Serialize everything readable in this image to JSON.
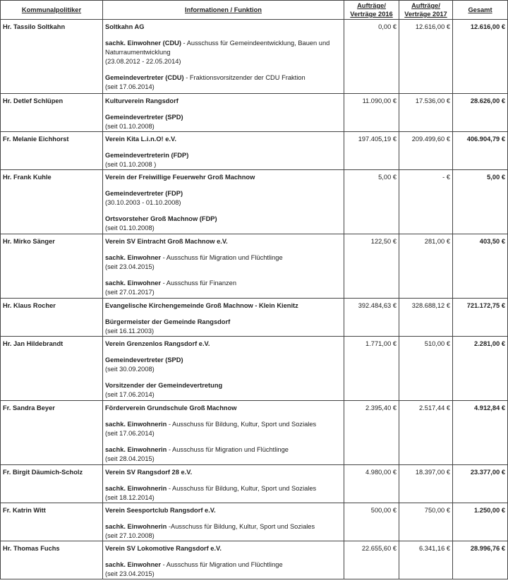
{
  "headers": {
    "politician": "Kommunalpolitiker",
    "info": "Informationen / Funktion",
    "y2016": "Aufträge/ Verträge 2016",
    "y2017": "Aufträge/ Verträge 2017",
    "total": "Gesamt"
  },
  "rows": [
    {
      "name": "Hr. Tassilo Soltkahn",
      "org": "Soltkahn AG",
      "blocks": [
        {
          "bold": "sachk. Einwohner (CDU)",
          "rest": " - Ausschuss für Gemeindeentwicklung, Bauen und Naturraumentwicklung",
          "date": "(23.08.2012 - 22.05.2014)"
        },
        {
          "bold": "Gemeindevertreter (CDU)",
          "rest": " - Fraktionsvorsitzender der CDU Fraktion",
          "date": "(seit 17.06.2014)"
        }
      ],
      "y2016": "0,00 €",
      "y2017": "12.616,00 €",
      "total": "12.616,00 €"
    },
    {
      "name": "Hr. Detlef Schlüpen",
      "org": "Kulturverein Rangsdorf",
      "blocks": [
        {
          "bold": "Gemeindevertreter (SPD)",
          "rest": "",
          "date": "(seit 01.10.2008)"
        }
      ],
      "y2016": "11.090,00 €",
      "y2017": "17.536,00 €",
      "total": "28.626,00 €"
    },
    {
      "name": "Fr. Melanie Eichhorst",
      "org": "Verein Kita L.i.n.O! e.V.",
      "blocks": [
        {
          "bold": "Gemeindevertreterin (FDP)",
          "rest": "",
          "date": "(seit 01.10.2008 )"
        }
      ],
      "y2016": "197.405,19 €",
      "y2017": "209.499,60 €",
      "total": "406.904,79 €"
    },
    {
      "name": "Hr. Frank Kuhle",
      "org": "Verein der Freiwillige Feuerwehr Groß Machnow",
      "blocks": [
        {
          "bold": "Gemeindevertreter (FDP)",
          "rest": "",
          "date": "(30.10.2003 - 01.10.2008)"
        },
        {
          "bold": "Ortsvorsteher Groß Machnow (FDP)",
          "rest": "",
          "date": "(seit 01.10.2008)"
        }
      ],
      "y2016": "5,00 €",
      "y2017": "-    €",
      "total": "5,00 €"
    },
    {
      "name": "Hr. Mirko Sänger",
      "org": "Verein SV Eintracht Groß Machnow e.V.",
      "blocks": [
        {
          "bold": "sachk. Einwohner",
          "rest": " - Ausschuss für Migration und Flüchtlinge",
          "date": "(seit 23.04.2015)"
        },
        {
          "bold": "sachk. Einwohner",
          "rest": " - Ausschuss für Finanzen",
          "date": "(seit 27.01.2017)"
        }
      ],
      "y2016": "122,50 €",
      "y2017": "281,00 €",
      "total": "403,50 €"
    },
    {
      "name": "Hr. Klaus Rocher",
      "org": "Evangelische Kirchengemeinde Groß Machnow - Klein Kienitz",
      "blocks": [
        {
          "bold": "Bürgermeister der Gemeinde Rangsdorf",
          "rest": "",
          "date": "(seit 16.11.2003)"
        }
      ],
      "y2016": "392.484,63 €",
      "y2017": "328.688,12 €",
      "total": "721.172,75 €"
    },
    {
      "name": "Hr. Jan Hildebrandt",
      "org": "Verein Grenzenlos Rangsdorf e.V.",
      "blocks": [
        {
          "bold": "Gemeindevertreter (SPD)",
          "rest": "",
          "date": "(seit 30.09.2008)"
        },
        {
          "bold": "Vorsitzender der Gemeindevertretung",
          "rest": "",
          "date": "(seit 17.06.2014)"
        }
      ],
      "y2016": "1.771,00 €",
      "y2017": "510,00 €",
      "total": "2.281,00 €"
    },
    {
      "name": "Fr. Sandra Beyer",
      "org": "Förderverein Grundschule Groß Machnow",
      "blocks": [
        {
          "bold": "sachk. Einwohnerin",
          "rest": " - Ausschuss für Bildung, Kultur, Sport und Soziales",
          "date": "(seit 17.06.2014)"
        },
        {
          "bold": "sachk. Einwohnerin",
          "rest": " - Ausschuss für Migration und Flüchtlinge",
          "date": "(seit 28.04.2015)"
        }
      ],
      "y2016": "2.395,40 €",
      "y2017": "2.517,44 €",
      "total": "4.912,84 €"
    },
    {
      "name": "Fr. Birgit Däumich-Scholz",
      "org": "Verein SV Rangsdorf 28 e.V.",
      "blocks": [
        {
          "bold": "sachk. Einwohnerin",
          "rest": " - Ausschuss für Bildung, Kultur, Sport und Soziales",
          "date": "(seit 18.12.2014)"
        }
      ],
      "y2016": "4.980,00 €",
      "y2017": "18.397,00 €",
      "total": "23.377,00 €"
    },
    {
      "name": "Fr. Katrin Witt",
      "org": "Verein Seesportclub Rangsdorf e.V.",
      "blocks": [
        {
          "bold": "sachk. Einwohnerin",
          "rest": " -Ausschuss für Bildung, Kultur, Sport und Soziales",
          "date": "(seit 27.10.2008)"
        }
      ],
      "y2016": "500,00 €",
      "y2017": "750,00 €",
      "total": "1.250,00 €"
    },
    {
      "name": "Hr. Thomas Fuchs",
      "org": "Verein SV Lokomotive Rangsdorf e.V.",
      "blocks": [
        {
          "bold": "sachk. Einwohner",
          "rest": " - Ausschuss für Migration und Flüchtlinge",
          "date": "(seit 23.04.2015)"
        }
      ],
      "y2016": "22.655,60 €",
      "y2017": "6.341,16 €",
      "total": "28.996,76 €"
    }
  ]
}
